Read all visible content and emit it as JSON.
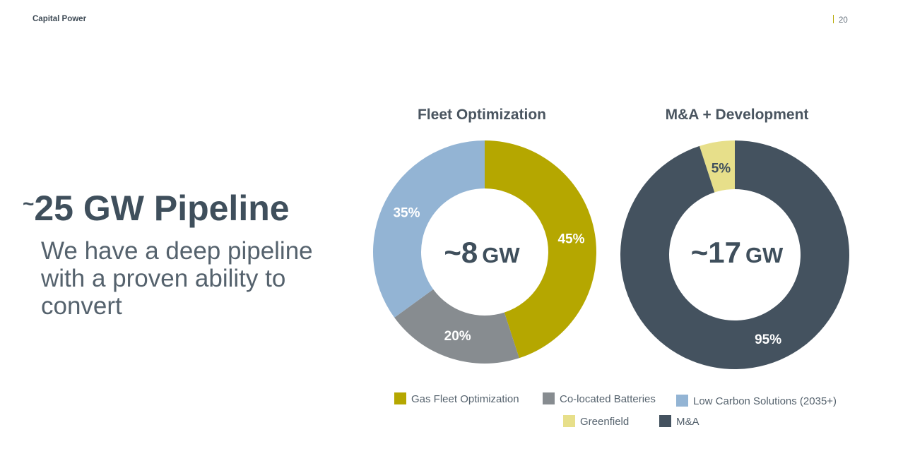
{
  "header": {
    "company": "Capital Power",
    "page_number": "20"
  },
  "headline": {
    "tilde": "~",
    "text": "25 GW Pipeline"
  },
  "subhead": "We have a deep pipeline with a proven ability to convert",
  "chart_data": [
    {
      "type": "pie",
      "title": "Fleet Optimization",
      "center_value": "~8",
      "center_unit": "GW",
      "slices": [
        {
          "label": "Gas Fleet Optimization",
          "value": 45,
          "color": "#b5a700"
        },
        {
          "label": "Co-located Batteries",
          "value": 20,
          "color": "#878c90"
        },
        {
          "label": "Low Carbon Solutions (2035+)",
          "value": 35,
          "color": "#93b4d4"
        }
      ]
    },
    {
      "type": "pie",
      "title": "M&A + Development",
      "center_value": "~17",
      "center_unit": "GW",
      "slices": [
        {
          "label": "M&A",
          "value": 95,
          "color": "#44525f"
        },
        {
          "label": "Greenfield",
          "value": 5,
          "color": "#e7df8a"
        }
      ]
    }
  ],
  "legend": [
    {
      "label": "Gas Fleet Optimization",
      "color": "#b5a700"
    },
    {
      "label": "Co-located Batteries",
      "color": "#878c90"
    },
    {
      "label": "Low Carbon Solutions (2035+)",
      "color": "#93b4d4"
    },
    {
      "label": "Greenfield",
      "color": "#e7df8a"
    },
    {
      "label": "M&A",
      "color": "#44525f"
    }
  ]
}
